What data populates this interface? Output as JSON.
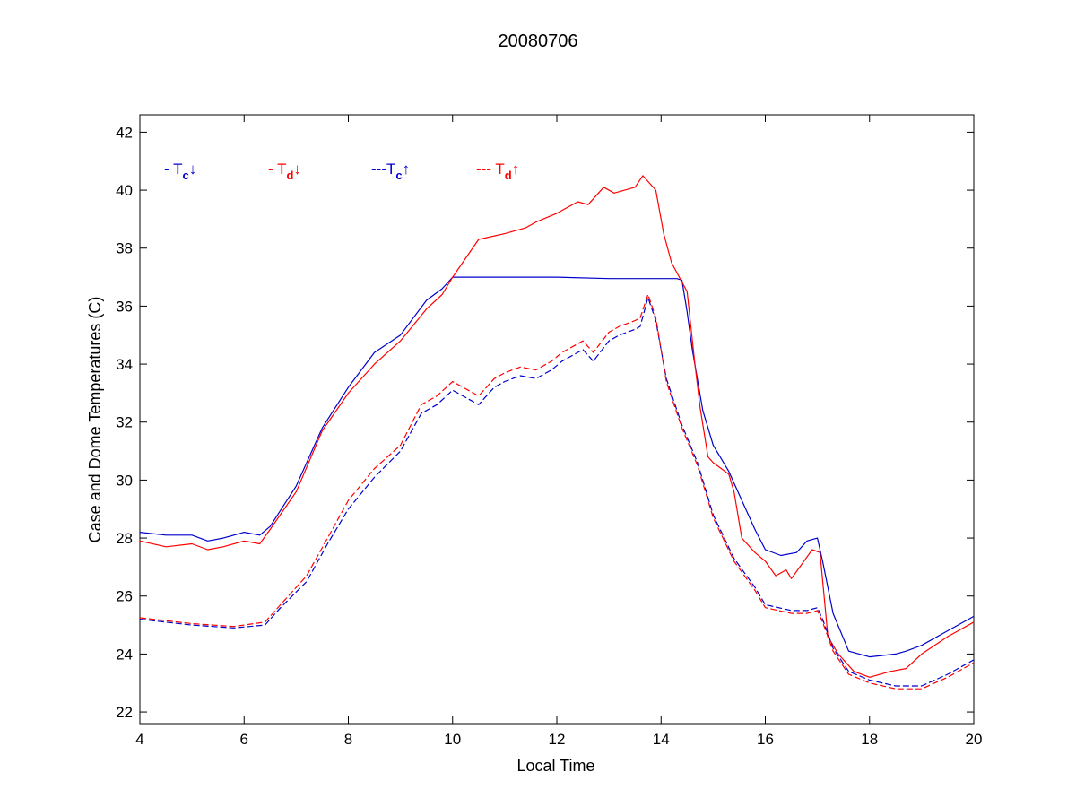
{
  "chart_data": {
    "type": "line",
    "title": "20080706",
    "xlabel": "Local Time",
    "ylabel": "Case and Dome Temperatures (C)",
    "xlim": [
      4,
      20
    ],
    "ylim": [
      21.6,
      42.6
    ],
    "xticks": [
      4,
      6,
      8,
      10,
      12,
      14,
      16,
      18,
      20
    ],
    "yticks": [
      22,
      24,
      26,
      28,
      30,
      32,
      34,
      36,
      38,
      40,
      42
    ],
    "grid": false,
    "legend_placement": "top-left",
    "legend": [
      {
        "prefix": "- T",
        "sub": "c",
        "arrow": "↓",
        "color": "#0000cc"
      },
      {
        "prefix": "- T",
        "sub": "d",
        "arrow": "↓",
        "color": "#ff0000"
      },
      {
        "prefix": "---T",
        "sub": "c",
        "arrow": "↑",
        "color": "#0000cc"
      },
      {
        "prefix": "--- T",
        "sub": "d",
        "arrow": "↑",
        "color": "#ff0000"
      }
    ],
    "series": [
      {
        "color": "#0000cc",
        "dash": "solid",
        "x": [
          4.0,
          4.5,
          5.0,
          5.3,
          5.6,
          6.0,
          6.3,
          6.5,
          7.0,
          7.5,
          8.0,
          8.5,
          9.0,
          9.5,
          9.8,
          10.0,
          11.0,
          12.0,
          13.0,
          14.0,
          14.3,
          14.4,
          14.5,
          14.6,
          14.8,
          15.0,
          15.3,
          15.5,
          15.8,
          16.0,
          16.3,
          16.6,
          16.8,
          17.0,
          17.1,
          17.3,
          17.6,
          18.0,
          18.5,
          18.7,
          19.0,
          19.5,
          20.0
        ],
        "y": [
          28.2,
          28.1,
          28.1,
          27.9,
          28.0,
          28.2,
          28.1,
          28.4,
          29.8,
          31.8,
          33.2,
          34.4,
          35.0,
          36.2,
          36.6,
          37.0,
          37.0,
          37.0,
          36.95,
          36.95,
          36.95,
          36.9,
          35.8,
          34.5,
          32.4,
          31.2,
          30.3,
          29.5,
          28.3,
          27.6,
          27.4,
          27.5,
          27.9,
          28.0,
          27.2,
          25.4,
          24.1,
          23.9,
          24.0,
          24.1,
          24.3,
          24.8,
          25.3
        ]
      },
      {
        "color": "#ff0000",
        "dash": "solid",
        "x": [
          4.0,
          4.5,
          5.0,
          5.3,
          5.6,
          6.0,
          6.3,
          6.5,
          7.0,
          7.5,
          8.0,
          8.5,
          9.0,
          9.5,
          9.8,
          10.0,
          10.5,
          11.0,
          11.4,
          11.6,
          12.0,
          12.4,
          12.6,
          12.9,
          13.1,
          13.5,
          13.65,
          13.8,
          13.9,
          14.05,
          14.2,
          14.35,
          14.5,
          14.65,
          14.75,
          14.9,
          15.0,
          15.3,
          15.4,
          15.55,
          15.8,
          16.0,
          16.2,
          16.4,
          16.5,
          16.7,
          16.9,
          17.05,
          17.2,
          17.4,
          17.7,
          18.0,
          18.4,
          18.7,
          19.0,
          19.5,
          20.0
        ],
        "y": [
          27.9,
          27.7,
          27.8,
          27.6,
          27.7,
          27.9,
          27.8,
          28.3,
          29.6,
          31.7,
          33.0,
          34.0,
          34.8,
          35.9,
          36.4,
          37.0,
          38.3,
          38.5,
          38.7,
          38.9,
          39.2,
          39.6,
          39.5,
          40.1,
          39.9,
          40.1,
          40.5,
          40.2,
          40.0,
          38.5,
          37.5,
          37.0,
          36.5,
          34.0,
          32.5,
          30.8,
          30.6,
          30.2,
          29.6,
          28.0,
          27.5,
          27.2,
          26.7,
          26.9,
          26.6,
          27.1,
          27.6,
          27.5,
          24.6,
          24.0,
          23.4,
          23.2,
          23.4,
          23.5,
          24.0,
          24.6,
          25.1
        ]
      },
      {
        "color": "#0000cc",
        "dash": "dashed",
        "x": [
          4.0,
          5.0,
          5.8,
          6.4,
          6.7,
          7.2,
          7.6,
          8.0,
          8.5,
          9.0,
          9.4,
          9.7,
          10.0,
          10.3,
          10.5,
          10.8,
          11.0,
          11.3,
          11.6,
          11.9,
          12.1,
          12.5,
          12.7,
          13.0,
          13.2,
          13.5,
          13.6,
          13.75,
          13.9,
          14.1,
          14.4,
          14.7,
          15.0,
          15.4,
          15.8,
          16.0,
          16.5,
          16.8,
          17.0,
          17.1,
          17.3,
          17.6,
          18.0,
          18.5,
          19.0,
          19.5,
          20.0
        ],
        "y": [
          25.2,
          25.0,
          24.9,
          25.0,
          25.6,
          26.5,
          27.8,
          29.0,
          30.1,
          31.0,
          32.3,
          32.6,
          33.1,
          32.8,
          32.6,
          33.2,
          33.4,
          33.6,
          33.5,
          33.8,
          34.1,
          34.5,
          34.1,
          34.8,
          35.0,
          35.2,
          35.3,
          36.3,
          35.5,
          33.5,
          31.9,
          30.6,
          28.8,
          27.3,
          26.3,
          25.7,
          25.5,
          25.5,
          25.6,
          25.2,
          24.2,
          23.4,
          23.1,
          22.9,
          22.9,
          23.3,
          23.8
        ]
      },
      {
        "color": "#ff0000",
        "dash": "dashed",
        "x": [
          4.0,
          5.0,
          5.8,
          6.4,
          6.7,
          7.2,
          7.6,
          8.0,
          8.5,
          9.0,
          9.4,
          9.7,
          10.0,
          10.3,
          10.5,
          10.8,
          11.0,
          11.3,
          11.6,
          11.9,
          12.1,
          12.5,
          12.7,
          13.0,
          13.2,
          13.5,
          13.6,
          13.75,
          13.9,
          14.1,
          14.4,
          14.7,
          15.0,
          15.4,
          15.8,
          16.0,
          16.5,
          16.8,
          17.0,
          17.1,
          17.3,
          17.6,
          18.0,
          18.5,
          19.0,
          19.5,
          20.0
        ],
        "y": [
          25.25,
          25.05,
          24.95,
          25.1,
          25.7,
          26.7,
          28.0,
          29.3,
          30.4,
          31.2,
          32.6,
          32.9,
          33.4,
          33.1,
          32.9,
          33.5,
          33.7,
          33.9,
          33.8,
          34.1,
          34.4,
          34.8,
          34.4,
          35.1,
          35.3,
          35.5,
          35.6,
          36.4,
          35.6,
          33.4,
          31.8,
          30.5,
          28.7,
          27.2,
          26.2,
          25.6,
          25.4,
          25.4,
          25.5,
          25.1,
          24.1,
          23.3,
          23.0,
          22.8,
          22.8,
          23.2,
          23.7
        ]
      }
    ]
  }
}
